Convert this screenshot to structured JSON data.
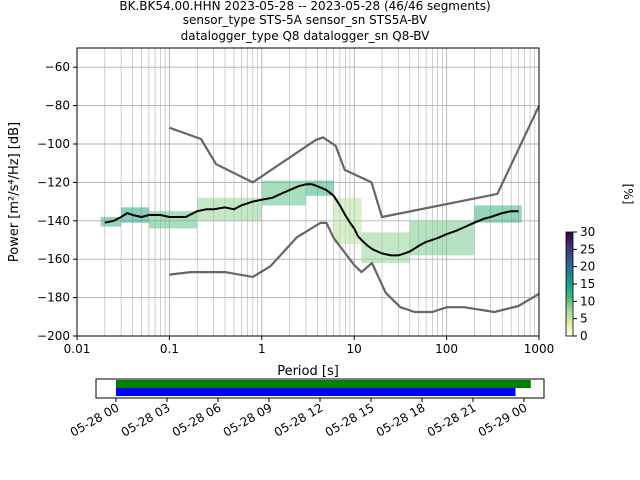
{
  "title_lines": [
    "BK.BK54.00.HHN   2023-05-28 -- 2023-05-28  (46/46 segments)",
    "sensor_type STS-5A sensor_sn STS5A-BV",
    "datalogger_type Q8 datalogger_sn Q8-BV"
  ],
  "chart_data": {
    "type": "heatmap",
    "title": "BK.BK54.00.HHN   2023-05-28 -- 2023-05-28  (46/46 segments)",
    "xlabel": "Period [s]",
    "ylabel": "Power [m²/s⁴/Hz] [dB]",
    "x_scale": "log",
    "xlim": [
      0.01,
      1000
    ],
    "ylim": [
      -200,
      -50
    ],
    "x_ticks": [
      {
        "value": 0.01,
        "label": "0.01"
      },
      {
        "value": 0.1,
        "label": "0.1"
      },
      {
        "value": 1,
        "label": "1"
      },
      {
        "value": 10,
        "label": "10"
      },
      {
        "value": 100,
        "label": "100"
      },
      {
        "value": 1000,
        "label": "1000"
      }
    ],
    "y_ticks": [
      -60,
      -80,
      -100,
      -120,
      -140,
      -160,
      -180,
      -200
    ],
    "grid": true,
    "colorbar": {
      "label": "[%]",
      "ticks": [
        0,
        5,
        10,
        15,
        20,
        25,
        30
      ],
      "range": [
        0,
        30
      ],
      "colors": [
        "#ffffe0",
        "#d9f0a3",
        "#a1d99b",
        "#41b680",
        "#1f9e89",
        "#2a788e",
        "#3b528b",
        "#482878",
        "#2d0a3a"
      ]
    },
    "series": [
      {
        "name": "mean",
        "color": "#000000",
        "x": [
          0.02,
          0.025,
          0.03,
          0.035,
          0.04,
          0.05,
          0.06,
          0.08,
          0.1,
          0.12,
          0.15,
          0.2,
          0.25,
          0.3,
          0.4,
          0.5,
          0.6,
          0.8,
          1,
          1.3,
          1.6,
          2,
          2.5,
          3,
          3.5,
          4,
          5,
          6,
          7,
          8,
          9,
          10,
          11,
          12,
          14,
          16,
          20,
          25,
          30,
          35,
          40,
          50,
          60,
          80,
          100,
          130,
          160,
          200,
          250,
          300,
          400,
          500,
          600
        ],
        "y": [
          -141,
          -140,
          -138,
          -136,
          -137,
          -138,
          -137,
          -137,
          -138,
          -138,
          -138,
          -135,
          -134,
          -134,
          -133,
          -134,
          -132,
          -130,
          -129,
          -128,
          -126,
          -124,
          -122,
          -121,
          -121,
          -122,
          -124,
          -127,
          -132,
          -137,
          -141,
          -144,
          -148,
          -150,
          -153,
          -155,
          -157,
          -158,
          -158,
          -157,
          -156,
          -153,
          -151,
          -149,
          -147,
          -145,
          -143,
          -141,
          -139,
          -138,
          -136,
          -135,
          -135
        ]
      },
      {
        "name": "noise_model_high",
        "color": "#666666",
        "x": [
          0.1,
          0.22,
          0.32,
          0.8,
          3.8,
          4.6,
          6.3,
          7.9,
          15.4,
          20,
          354.8,
          10000
        ],
        "y": [
          -91.5,
          -97.4,
          -110.5,
          -120,
          -98,
          -96.5,
          -101,
          -113.5,
          -120,
          -138,
          -126,
          -80.1
        ]
      },
      {
        "name": "noise_model_low",
        "color": "#666666",
        "x": [
          0.1,
          0.17,
          0.4,
          0.8,
          1.24,
          2.4,
          4.3,
          5,
          6,
          10,
          12,
          15.6,
          21.9,
          31.6,
          45,
          70,
          101,
          154,
          328,
          600,
          1000
        ],
        "y": [
          -168,
          -166.7,
          -166.7,
          -169.2,
          -163.7,
          -148.6,
          -141.1,
          -141.1,
          -149,
          -163,
          -166.7,
          -162,
          -177.5,
          -185,
          -187.5,
          -187.5,
          -185,
          -185,
          -187.5,
          -184.4,
          -178
        ]
      }
    ],
    "density_cells": [
      {
        "x_range": [
          0.018,
          0.03
        ],
        "y_range": [
          -143,
          -138
        ],
        "pct": 12
      },
      {
        "x_range": [
          0.03,
          0.06
        ],
        "y_range": [
          -141,
          -133
        ],
        "pct": 14
      },
      {
        "x_range": [
          0.06,
          0.2
        ],
        "y_range": [
          -144,
          -135
        ],
        "pct": 10
      },
      {
        "x_range": [
          0.2,
          1
        ],
        "y_range": [
          -140,
          -128
        ],
        "pct": 8
      },
      {
        "x_range": [
          1,
          3
        ],
        "y_range": [
          -132,
          -119
        ],
        "pct": 10
      },
      {
        "x_range": [
          3,
          6
        ],
        "y_range": [
          -127,
          -119
        ],
        "pct": 12
      },
      {
        "x_range": [
          6,
          12
        ],
        "y_range": [
          -152,
          -128
        ],
        "pct": 6
      },
      {
        "x_range": [
          12,
          40
        ],
        "y_range": [
          -162,
          -146
        ],
        "pct": 8
      },
      {
        "x_range": [
          40,
          200
        ],
        "y_range": [
          -158,
          -140
        ],
        "pct": 9
      },
      {
        "x_range": [
          200,
          650
        ],
        "y_range": [
          -141,
          -132
        ],
        "pct": 12
      }
    ]
  },
  "timeline": {
    "tick_labels": [
      "05-28 00",
      "05-28 03",
      "05-28 06",
      "05-28 09",
      "05-28 12",
      "05-28 15",
      "05-28 18",
      "05-28 21",
      "05-29 00"
    ],
    "start_hour": 0,
    "end_hour": 24,
    "bars": [
      {
        "name": "coverage",
        "color": "#008000",
        "start_hour": 0,
        "end_hour": 24.4
      },
      {
        "name": "data",
        "color": "#0000ff",
        "start_hour": 0,
        "end_hour": 23.5
      }
    ]
  }
}
